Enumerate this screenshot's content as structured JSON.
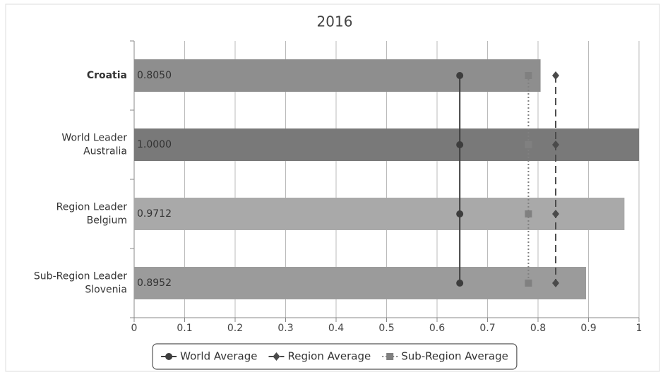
{
  "chart_data": {
    "type": "bar",
    "orientation": "horizontal",
    "title": "2016",
    "categories": [
      [
        "Croatia"
      ],
      [
        "World Leader",
        "Australia"
      ],
      [
        "Region Leader",
        "Belgium"
      ],
      [
        "Sub-Region Leader",
        "Slovenia"
      ]
    ],
    "values": [
      0.805,
      1.0,
      0.9712,
      0.8952
    ],
    "value_labels": [
      "0.8050",
      "1.0000",
      "0.9712",
      "0.8952"
    ],
    "bar_colors": [
      "#8e8e8e",
      "#797979",
      "#a9a9a9",
      "#9b9b9b"
    ],
    "series": [
      {
        "name": "World Average",
        "type": "line",
        "color": "#3d3d3d",
        "marker": "circle",
        "dash": "solid",
        "values": [
          0.645,
          0.645,
          0.645,
          0.645
        ]
      },
      {
        "name": "Region Average",
        "type": "line",
        "color": "#4a4a4a",
        "marker": "diamond",
        "dash": "dashed",
        "values": [
          0.835,
          0.835,
          0.835,
          0.835
        ]
      },
      {
        "name": "Sub-Region Average",
        "type": "line",
        "color": "#808080",
        "marker": "square",
        "dash": "dotted",
        "values": [
          0.781,
          0.781,
          0.781,
          0.781
        ]
      }
    ],
    "xlim": [
      0,
      1
    ],
    "xticks": [
      0,
      0.1,
      0.2,
      0.3,
      0.4,
      0.5,
      0.6,
      0.7,
      0.8,
      0.9,
      1
    ],
    "grid": true,
    "legend": "bottom"
  }
}
